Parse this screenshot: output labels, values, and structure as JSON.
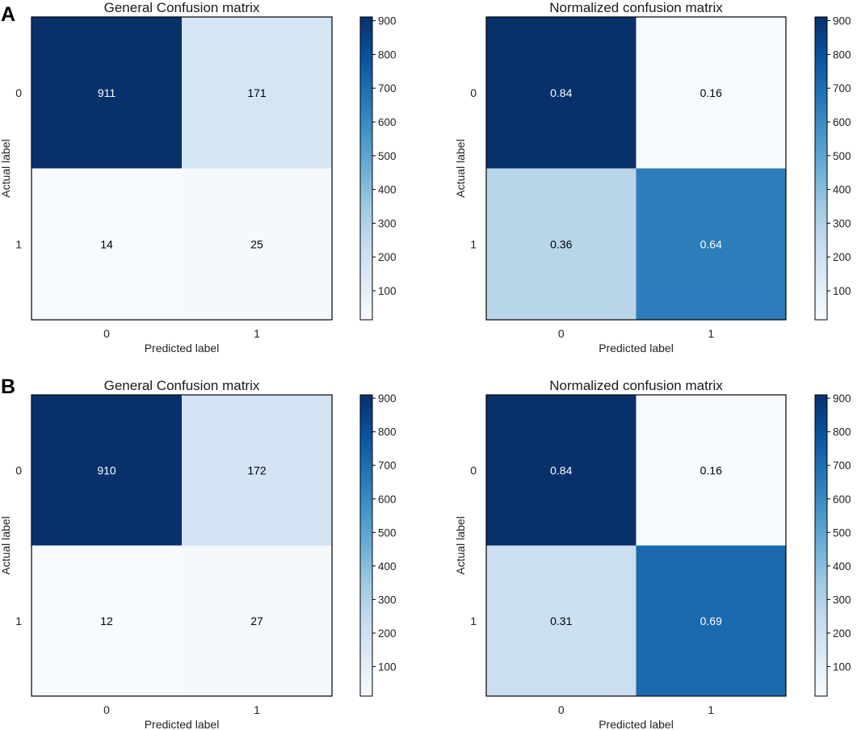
{
  "figure": {
    "panels": [
      {
        "label": "A"
      },
      {
        "label": "B"
      }
    ]
  },
  "colorscale": {
    "min": 14,
    "max": 911,
    "stops": [
      "#f7fbff",
      "#deebf7",
      "#c6dbef",
      "#9ecae1",
      "#6baed6",
      "#4292c6",
      "#2171b5",
      "#08519c",
      "#08306b"
    ]
  },
  "chart_data": [
    {
      "panel": "A",
      "type": "heatmap",
      "title": "General Confusion matrix",
      "xlabel": "Predicted label",
      "ylabel": "Actual label",
      "x_ticks": [
        "0",
        "1"
      ],
      "y_ticks": [
        "0",
        "1"
      ],
      "values": [
        [
          911,
          171
        ],
        [
          14,
          25
        ]
      ],
      "labels": [
        [
          "911",
          "171"
        ],
        [
          "14",
          "25"
        ]
      ],
      "colorbar_ticks": [
        100,
        200,
        300,
        400,
        500,
        600,
        700,
        800,
        900
      ],
      "colorbar_range": [
        14,
        911
      ]
    },
    {
      "panel": "A",
      "type": "heatmap",
      "title": "Normalized confusion matrix",
      "xlabel": "Predicted label",
      "ylabel": "Actual label",
      "x_ticks": [
        "0",
        "1"
      ],
      "y_ticks": [
        "0",
        "1"
      ],
      "values": [
        [
          0.84,
          0.16
        ],
        [
          0.36,
          0.64
        ]
      ],
      "labels": [
        [
          "0.84",
          "0.16"
        ],
        [
          "0.36",
          "0.64"
        ]
      ],
      "colorbar_ticks": [
        100,
        200,
        300,
        400,
        500,
        600,
        700,
        800,
        900
      ],
      "colorbar_range": [
        14,
        911
      ]
    },
    {
      "panel": "B",
      "type": "heatmap",
      "title": "General Confusion matrix",
      "xlabel": "Predicted label",
      "ylabel": "Actual label",
      "x_ticks": [
        "0",
        "1"
      ],
      "y_ticks": [
        "0",
        "1"
      ],
      "values": [
        [
          910,
          172
        ],
        [
          12,
          27
        ]
      ],
      "labels": [
        [
          "910",
          "172"
        ],
        [
          "12",
          "27"
        ]
      ],
      "colorbar_ticks": [
        100,
        200,
        300,
        400,
        500,
        600,
        700,
        800,
        900
      ],
      "colorbar_range": [
        12,
        910
      ]
    },
    {
      "panel": "B",
      "type": "heatmap",
      "title": "Normalized confusion matrix",
      "xlabel": "Predicted label",
      "ylabel": "Actual label",
      "x_ticks": [
        "0",
        "1"
      ],
      "y_ticks": [
        "0",
        "1"
      ],
      "values": [
        [
          0.84,
          0.16
        ],
        [
          0.31,
          0.69
        ]
      ],
      "labels": [
        [
          "0.84",
          "0.16"
        ],
        [
          "0.31",
          "0.69"
        ]
      ],
      "colorbar_ticks": [
        100,
        200,
        300,
        400,
        500,
        600,
        700,
        800,
        900
      ],
      "colorbar_range": [
        12,
        910
      ]
    }
  ]
}
